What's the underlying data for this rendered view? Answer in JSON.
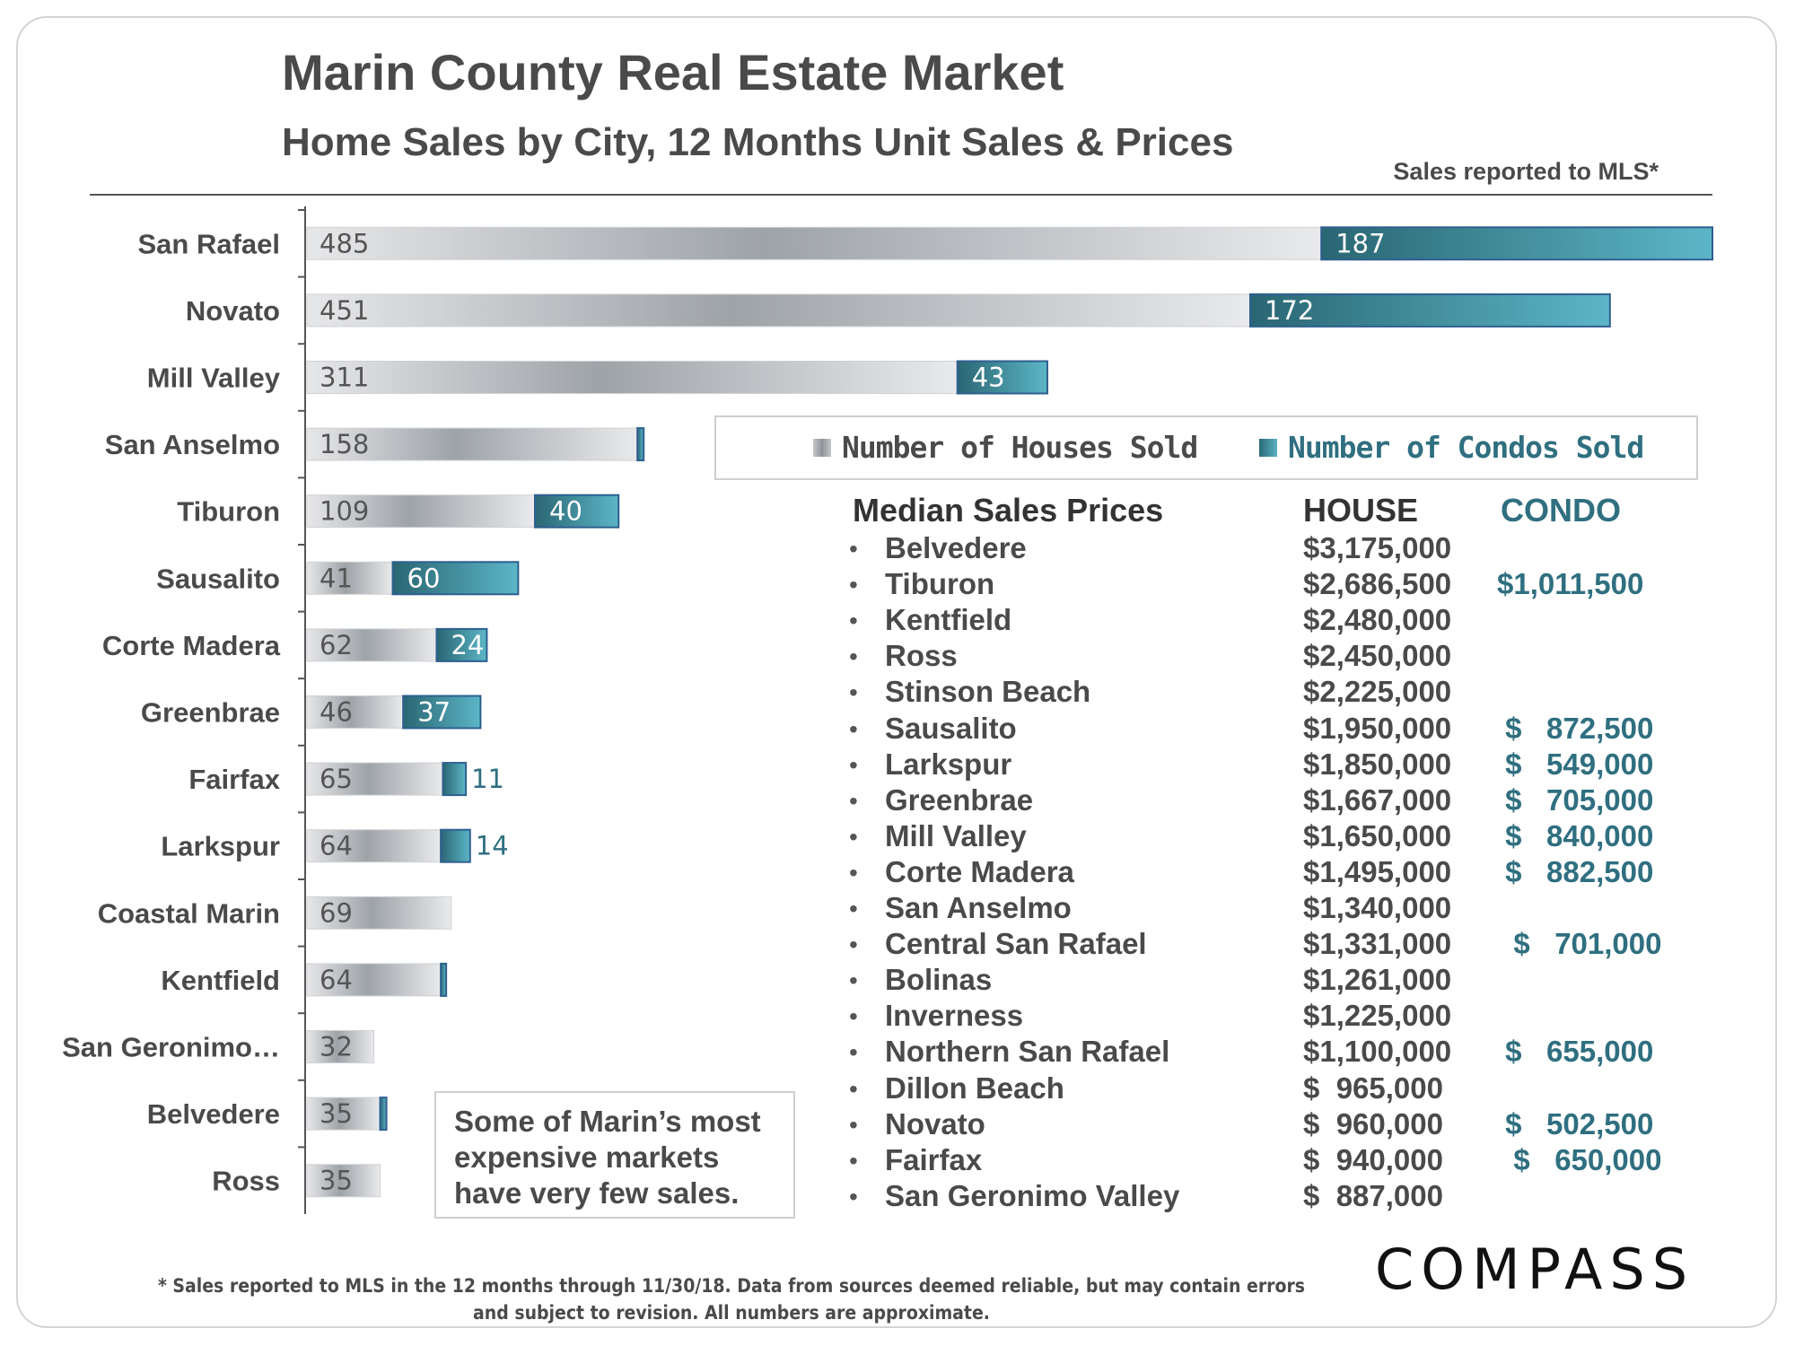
{
  "header": {
    "title": "Marin County Real Estate Market",
    "subtitle": "Home Sales by City, 12 Months Unit Sales & Prices",
    "mls_note": "Sales reported to MLS*"
  },
  "chart_data": {
    "type": "bar",
    "orientation": "horizontal",
    "stacked": true,
    "categories": [
      "San Rafael",
      "Novato",
      "Mill Valley",
      "San Anselmo",
      "Tiburon",
      "Sausalito",
      "Corte Madera",
      "Greenbrae",
      "Fairfax",
      "Larkspur",
      "Coastal Marin",
      "Kentfield",
      "San Geronimo…",
      "Belvedere",
      "Ross"
    ],
    "series": [
      {
        "name": "Number of Houses Sold",
        "values": [
          485,
          451,
          311,
          158,
          109,
          41,
          62,
          46,
          65,
          64,
          69,
          64,
          32,
          35,
          35
        ],
        "labels": [
          "485",
          "451",
          "311",
          "158",
          "109",
          "41",
          "62",
          "46",
          "65",
          "64",
          "69",
          "64",
          "32",
          "35",
          "35"
        ]
      },
      {
        "name": "Number of Condos Sold",
        "values": [
          187,
          172,
          43,
          3,
          40,
          60,
          24,
          37,
          11,
          14,
          0,
          1,
          0,
          3,
          0
        ],
        "labels": [
          "187",
          "172",
          "43",
          "",
          "40",
          "60",
          "24",
          "37",
          "11",
          "14",
          "",
          "",
          "",
          "",
          ""
        ]
      }
    ],
    "colors": {
      "houses": "#a4a8ac",
      "condos": "#3f8c9c",
      "condo_border": "#2e5f8f"
    },
    "xlim": [
      0,
      672
    ]
  },
  "legend": {
    "houses_label": "Number of Houses Sold",
    "condos_label": "Number of Condos Sold"
  },
  "median_prices": {
    "title": "Median Sales Prices",
    "house_header": "HOUSE",
    "condo_header": "CONDO",
    "bullet": "•",
    "rows": [
      {
        "city": "Belvedere",
        "house": "$3,175,000",
        "condo": ""
      },
      {
        "city": "Tiburon",
        "house": "$2,686,500",
        "condo": "$1,011,500"
      },
      {
        "city": "Kentfield",
        "house": "$2,480,000",
        "condo": ""
      },
      {
        "city": "Ross",
        "house": "$2,450,000",
        "condo": ""
      },
      {
        "city": "Stinson Beach",
        "house": "$2,225,000",
        "condo": ""
      },
      {
        "city": "Sausalito",
        "house": "$1,950,000",
        "condo": " $   872,500"
      },
      {
        "city": "Larkspur",
        "house": "$1,850,000",
        "condo": " $   549,000"
      },
      {
        "city": "Greenbrae",
        "house": "$1,667,000",
        "condo": " $   705,000"
      },
      {
        "city": "Mill Valley",
        "house": "$1,650,000",
        "condo": " $   840,000"
      },
      {
        "city": "Corte Madera",
        "house": "$1,495,000",
        "condo": " $   882,500"
      },
      {
        "city": "San Anselmo",
        "house": "$1,340,000",
        "condo": ""
      },
      {
        "city": "Central San Rafael",
        "house": "$1,331,000",
        "condo": "  $   701,000"
      },
      {
        "city": "Bolinas",
        "house": "$1,261,000",
        "condo": ""
      },
      {
        "city": "Inverness",
        "house": "$1,225,000",
        "condo": ""
      },
      {
        "city": "Northern San Rafael",
        "house": "$1,100,000",
        "condo": " $   655,000"
      },
      {
        "city": "Dillon Beach",
        "house": "$  965,000",
        "condo": ""
      },
      {
        "city": "Novato",
        "house": "$  960,000",
        "condo": " $   502,500"
      },
      {
        "city": "Fairfax",
        "house": "$  940,000",
        "condo": "  $   650,000"
      },
      {
        "city": "San Geronimo Valley",
        "house": "$  887,000",
        "condo": ""
      }
    ]
  },
  "callout": {
    "line1": "Some of Marin’s most",
    "line2": "expensive markets",
    "line3": "have very few sales."
  },
  "logo": "COMPASS",
  "footnote": {
    "line1": "* Sales reported to MLS in the 12 months through 11/30/18. Data from sources deemed reliable, but may contain errors",
    "line2": "and subject to revision. All numbers are approximate."
  }
}
